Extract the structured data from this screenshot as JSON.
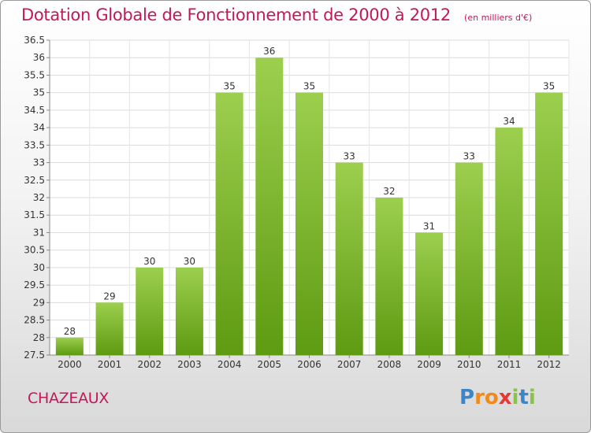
{
  "header": {
    "title": "Dotation Globale de Fonctionnement de 2000 à 2012",
    "subtitle": "(en milliers d'€)"
  },
  "footer": {
    "commune": "CHAZEAUX",
    "logo_text": "Proxiti",
    "logo_letters": [
      {
        "ch": "P",
        "color": "#3a86c8"
      },
      {
        "ch": "r",
        "color": "#f08a1c"
      },
      {
        "ch": "o",
        "color": "#f08a1c"
      },
      {
        "ch": "x",
        "color": "#e53935"
      },
      {
        "ch": "i",
        "color": "#8bc34a"
      },
      {
        "ch": "t",
        "color": "#3a86c8"
      },
      {
        "ch": "i",
        "color": "#8bc34a"
      }
    ]
  },
  "chart_data": {
    "type": "bar",
    "title": "Dotation Globale de Fonctionnement de 2000 à 2012",
    "subtitle": "(en milliers d'€)",
    "categories": [
      "2000",
      "2001",
      "2002",
      "2003",
      "2004",
      "2005",
      "2006",
      "2007",
      "2008",
      "2009",
      "2010",
      "2011",
      "2012"
    ],
    "values": [
      28,
      29,
      30,
      30,
      35,
      36,
      35,
      33,
      32,
      31,
      33,
      34,
      35
    ],
    "ylim": [
      27.5,
      36.5
    ],
    "yticks": [
      "27.5",
      "28",
      "28.5",
      "29",
      "29.5",
      "30",
      "30.5",
      "31",
      "31.5",
      "32",
      "32.5",
      "33",
      "33.5",
      "34",
      "34.5",
      "35",
      "35.5",
      "36",
      "36.5"
    ],
    "grid": true,
    "bar_color_top": "#9ccf4e",
    "bar_color_bottom": "#5e9a12"
  }
}
